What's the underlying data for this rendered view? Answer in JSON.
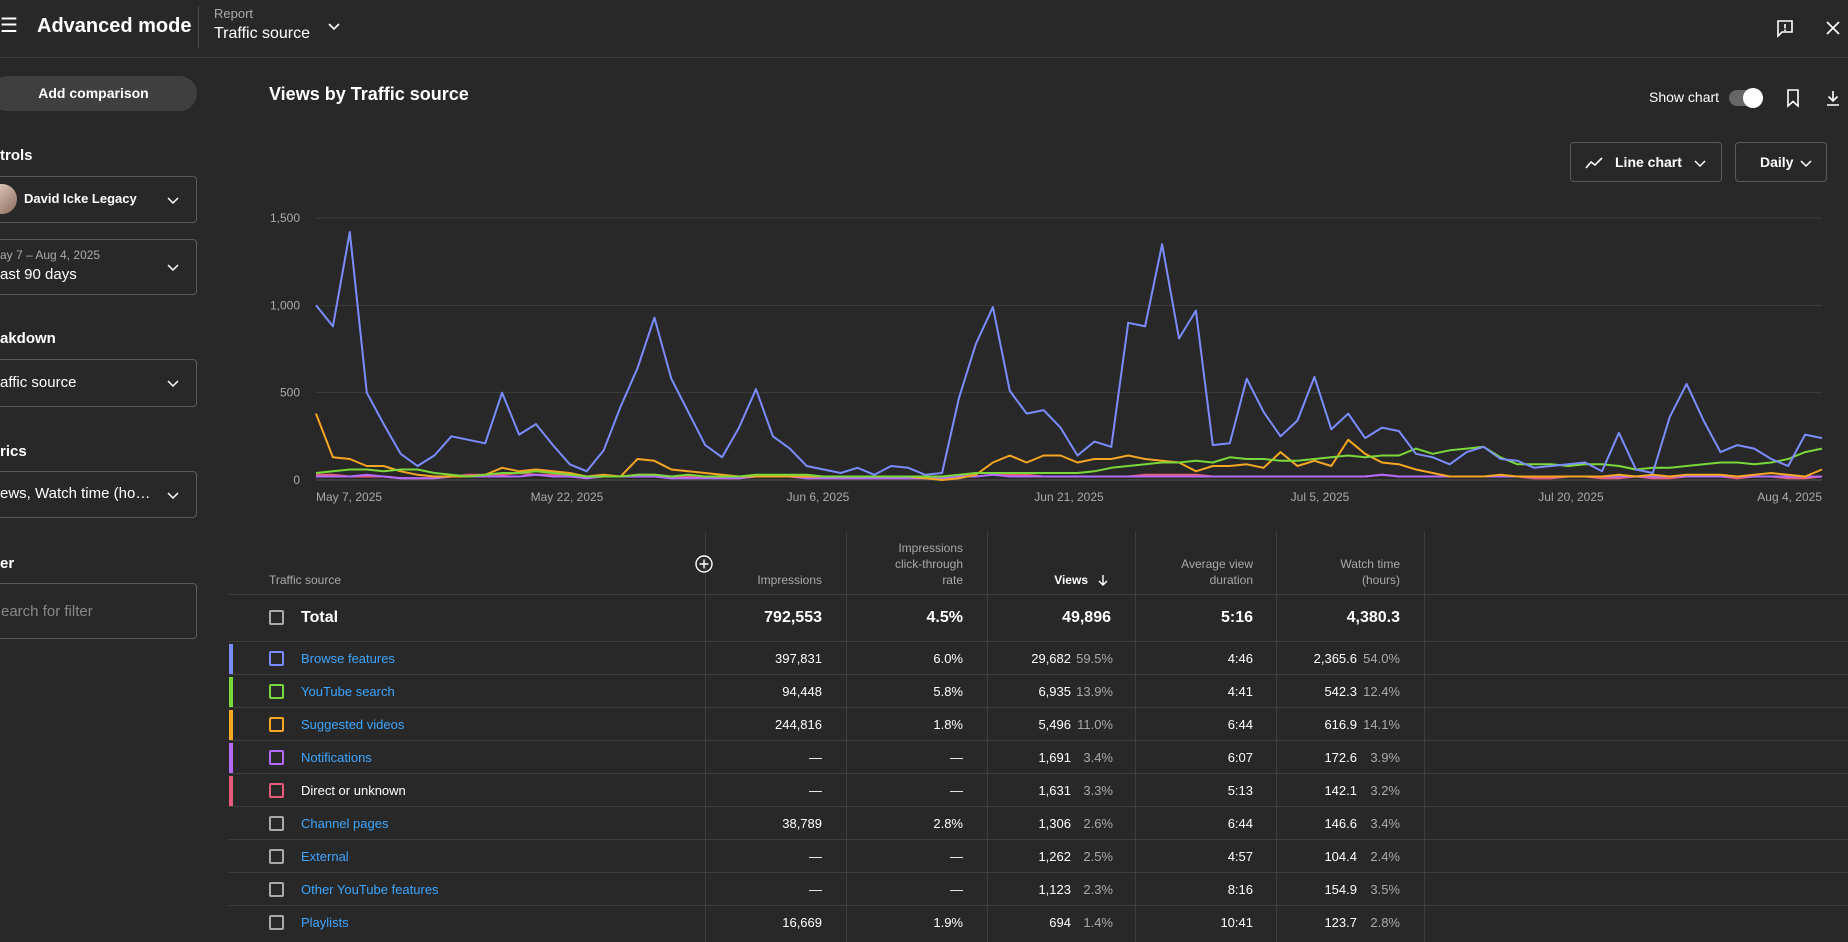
{
  "header": {
    "menu_glyph": "☰",
    "title": "Advanced mode",
    "report_label": "Report",
    "report_value": "Traffic source"
  },
  "sidebar": {
    "add_comparison": "Add comparison",
    "controls_label": "trols",
    "channel_name": "David Icke Legacy",
    "date_range": "ay 7 – Aug 4, 2025",
    "date_preset": "ast 90 days",
    "breakdown_label": "akdown",
    "breakdown_value": "affic source",
    "metrics_label": "rics",
    "metrics_value": "ews, Watch time (ho…",
    "filter_label": "er",
    "filter_placeholder": "earch for filter"
  },
  "main": {
    "chart_title": "Views by Traffic source",
    "show_chart_label": "Show chart",
    "chart_type_label": "Line chart",
    "period_label": "Daily"
  },
  "chart_data": {
    "type": "line",
    "x_tick_labels": [
      "May 7, 2025",
      "May 22, 2025",
      "Jun 6, 2025",
      "Jun 21, 2025",
      "Jul 5, 2025",
      "Jul 20, 2025",
      "Aug 4, 2025"
    ],
    "y_tick_labels": [
      "0",
      "500",
      "1,000",
      "1,500"
    ],
    "ylim": [
      0,
      1500
    ],
    "grid": true,
    "series": [
      {
        "color": "#7b8cff",
        "values": [
          1000,
          880,
          1420,
          500,
          320,
          150,
          80,
          140,
          250,
          230,
          210,
          500,
          260,
          320,
          200,
          90,
          50,
          170,
          420,
          640,
          930,
          580,
          390,
          200,
          130,
          300,
          520,
          250,
          180,
          80,
          60,
          40,
          70,
          30,
          80,
          70,
          30,
          40,
          470,
          780,
          990,
          510,
          380,
          400,
          300,
          140,
          220,
          190,
          900,
          880,
          1350,
          810,
          970,
          200,
          210,
          580,
          390,
          250,
          340,
          590,
          290,
          380,
          240,
          300,
          280,
          150,
          130,
          90,
          160,
          190,
          120,
          110,
          70,
          80,
          90,
          100,
          50,
          270,
          60,
          40,
          360,
          550,
          340,
          160,
          200,
          180,
          120,
          80,
          260,
          240
        ]
      },
      {
        "color": "#7bd83a",
        "values": [
          40,
          50,
          60,
          60,
          50,
          60,
          60,
          40,
          30,
          20,
          30,
          40,
          40,
          50,
          40,
          30,
          20,
          20,
          20,
          30,
          30,
          20,
          30,
          20,
          20,
          20,
          30,
          30,
          30,
          30,
          20,
          20,
          20,
          20,
          20,
          20,
          20,
          20,
          30,
          40,
          40,
          40,
          40,
          40,
          40,
          40,
          50,
          70,
          80,
          90,
          100,
          100,
          110,
          100,
          130,
          120,
          120,
          110,
          110,
          120,
          130,
          140,
          130,
          140,
          140,
          180,
          150,
          170,
          180,
          190,
          130,
          90,
          90,
          90,
          80,
          90,
          90,
          80,
          60,
          70,
          70,
          80,
          90,
          100,
          100,
          90,
          100,
          120,
          160,
          180
        ]
      },
      {
        "color": "#f5a623",
        "values": [
          380,
          130,
          120,
          80,
          80,
          50,
          30,
          20,
          20,
          20,
          30,
          70,
          50,
          60,
          50,
          40,
          20,
          30,
          20,
          120,
          110,
          60,
          50,
          40,
          30,
          20,
          20,
          20,
          20,
          20,
          20,
          20,
          20,
          20,
          20,
          20,
          10,
          0,
          10,
          30,
          100,
          140,
          100,
          140,
          140,
          100,
          120,
          120,
          140,
          120,
          110,
          100,
          50,
          80,
          80,
          90,
          70,
          160,
          80,
          110,
          80,
          230,
          150,
          100,
          90,
          60,
          40,
          20,
          20,
          20,
          30,
          20,
          20,
          20,
          20,
          20,
          20,
          30,
          20,
          30,
          20,
          30,
          30,
          30,
          20,
          30,
          40,
          30,
          20,
          60
        ]
      },
      {
        "color": "#b36bff",
        "values": [
          20,
          20,
          20,
          30,
          20,
          10,
          10,
          10,
          20,
          20,
          20,
          20,
          20,
          30,
          20,
          20,
          10,
          20,
          20,
          20,
          20,
          10,
          10,
          10,
          10,
          10,
          20,
          20,
          20,
          10,
          10,
          10,
          10,
          10,
          10,
          10,
          10,
          10,
          20,
          20,
          30,
          20,
          20,
          20,
          20,
          20,
          20,
          20,
          20,
          20,
          20,
          20,
          20,
          20,
          20,
          20,
          20,
          20,
          20,
          20,
          20,
          20,
          20,
          30,
          20,
          20,
          20,
          20,
          20,
          20,
          20,
          20,
          20,
          20,
          20,
          20,
          20,
          20,
          20,
          20,
          20,
          20,
          20,
          20,
          20,
          20,
          20,
          20,
          20,
          20
        ]
      },
      {
        "color": "#e65a7a",
        "values": [
          30,
          30,
          20,
          20,
          20,
          10,
          10,
          10,
          20,
          30,
          30,
          30,
          40,
          30,
          30,
          20,
          20,
          20,
          20,
          30,
          30,
          20,
          20,
          20,
          10,
          10,
          20,
          20,
          20,
          10,
          10,
          10,
          10,
          10,
          10,
          10,
          10,
          10,
          20,
          40,
          40,
          30,
          30,
          20,
          20,
          20,
          20,
          20,
          20,
          30,
          30,
          30,
          30,
          20,
          20,
          20,
          20,
          20,
          20,
          20,
          20,
          20,
          20,
          30,
          20,
          20,
          20,
          20,
          20,
          20,
          20,
          20,
          10,
          10,
          20,
          20,
          10,
          10,
          20,
          10,
          10,
          20,
          20,
          20,
          10,
          20,
          20,
          10,
          10,
          20
        ]
      }
    ]
  },
  "table": {
    "headers": {
      "source": "Traffic source",
      "impressions": "Impressions",
      "ctr_line1": "Impressions",
      "ctr_line2": "click-through",
      "ctr_line3": "rate",
      "views": "Views",
      "avd_line1": "Average view",
      "avd_line2": "duration",
      "watch_line1": "Watch time",
      "watch_line2": "(hours)"
    },
    "total": {
      "label": "Total",
      "impressions": "792,553",
      "ctr": "4.5%",
      "views": "49,896",
      "avd": "5:16",
      "watch": "4,380.3"
    },
    "rows": [
      {
        "name": "Browse features",
        "color": "#7b8cff",
        "link": true,
        "impressions": "397,831",
        "ctr": "6.0%",
        "views": "29,682",
        "views_pct": "59.5%",
        "avd": "4:46",
        "watch": "2,365.6",
        "watch_pct": "54.0%"
      },
      {
        "name": "YouTube search",
        "color": "#7bd83a",
        "link": true,
        "impressions": "94,448",
        "ctr": "5.8%",
        "views": "6,935",
        "views_pct": "13.9%",
        "avd": "4:41",
        "watch": "542.3",
        "watch_pct": "12.4%"
      },
      {
        "name": "Suggested videos",
        "color": "#f5a623",
        "link": true,
        "impressions": "244,816",
        "ctr": "1.8%",
        "views": "5,496",
        "views_pct": "11.0%",
        "avd": "6:44",
        "watch": "616.9",
        "watch_pct": "14.1%"
      },
      {
        "name": "Notifications",
        "color": "#b36bff",
        "link": true,
        "impressions": "—",
        "ctr": "—",
        "views": "1,691",
        "views_pct": "3.4%",
        "avd": "6:07",
        "watch": "172.6",
        "watch_pct": "3.9%"
      },
      {
        "name": "Direct or unknown",
        "color": "#e65a7a",
        "link": false,
        "impressions": "—",
        "ctr": "—",
        "views": "1,631",
        "views_pct": "3.3%",
        "avd": "5:13",
        "watch": "142.1",
        "watch_pct": "3.2%"
      },
      {
        "name": "Channel pages",
        "color": "",
        "link": true,
        "impressions": "38,789",
        "ctr": "2.8%",
        "views": "1,306",
        "views_pct": "2.6%",
        "avd": "6:44",
        "watch": "146.6",
        "watch_pct": "3.4%"
      },
      {
        "name": "External",
        "color": "",
        "link": true,
        "impressions": "—",
        "ctr": "—",
        "views": "1,262",
        "views_pct": "2.5%",
        "avd": "4:57",
        "watch": "104.4",
        "watch_pct": "2.4%"
      },
      {
        "name": "Other YouTube features",
        "color": "",
        "link": true,
        "impressions": "—",
        "ctr": "—",
        "views": "1,123",
        "views_pct": "2.3%",
        "avd": "8:16",
        "watch": "154.9",
        "watch_pct": "3.5%"
      },
      {
        "name": "Playlists",
        "color": "",
        "link": true,
        "impressions": "16,669",
        "ctr": "1.9%",
        "views": "694",
        "views_pct": "1.4%",
        "avd": "10:41",
        "watch": "123.7",
        "watch_pct": "2.8%"
      }
    ]
  }
}
